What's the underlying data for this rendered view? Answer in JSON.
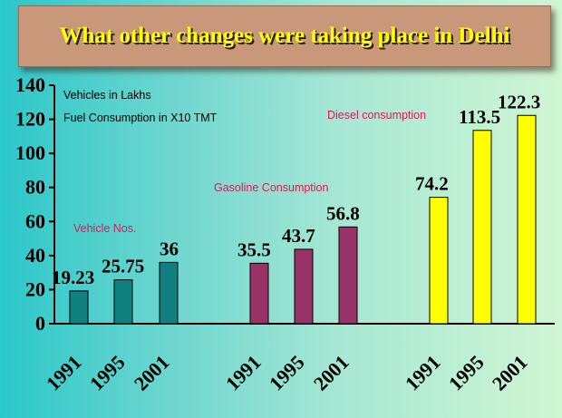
{
  "header": {
    "title": "What other changes were taking place in Delhi"
  },
  "colors": {
    "vehicle": "#118080",
    "gasoline": "#993366",
    "diesel": "#ffff00",
    "group_label": "#e0185a",
    "title_text": "#ffff00",
    "banner": "#c9987a"
  },
  "chart_data": {
    "type": "bar",
    "title": "What other changes were taking place in Delhi",
    "notes": [
      "Vehicles in Lakhs",
      "Fuel Consumption in X10 TMT"
    ],
    "ylim": [
      0,
      140
    ],
    "yticks": [
      0,
      20,
      40,
      60,
      80,
      100,
      120,
      140
    ],
    "grid": false,
    "groups": [
      {
        "label": "Vehicle Nos.",
        "categories": [
          "1991",
          "1995",
          "2001"
        ],
        "values": [
          19.23,
          25.75,
          36
        ],
        "value_labels": [
          "19.23",
          "25.75",
          "36"
        ],
        "color": "#118080"
      },
      {
        "label": "Gasoline Consumption",
        "categories": [
          "1991",
          "1995",
          "2001"
        ],
        "values": [
          35.5,
          43.7,
          56.8
        ],
        "value_labels": [
          "35.5",
          "43.7",
          "56.8"
        ],
        "color": "#993366"
      },
      {
        "label": "Diesel consumption",
        "categories": [
          "1991",
          "1995",
          "2001"
        ],
        "values": [
          74.2,
          113.5,
          122.3
        ],
        "value_labels": [
          "74.2",
          "113.5",
          "122.3"
        ],
        "color": "#ffff00"
      }
    ]
  }
}
